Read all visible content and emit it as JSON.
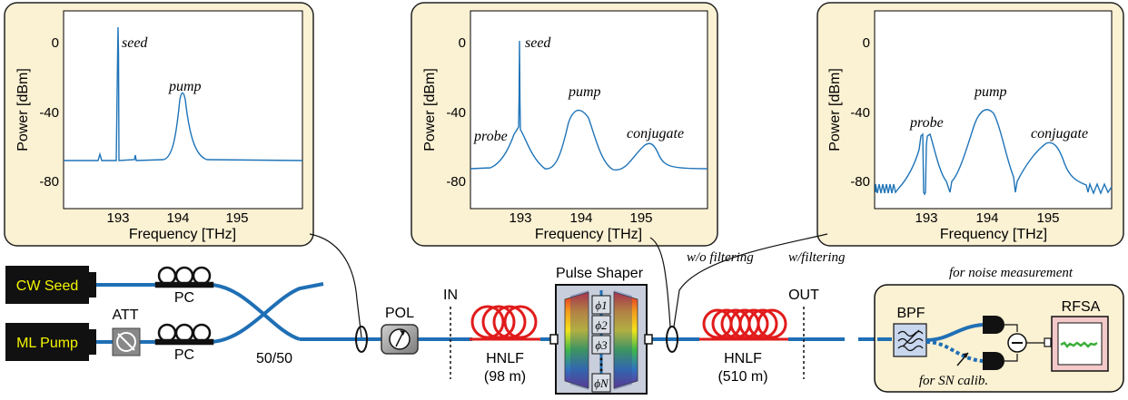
{
  "colors": {
    "panel_bg": "#fbf1d3",
    "fiber": "#1f6fb5",
    "hnlf": "#e11b1b",
    "trace": "#1f74b8",
    "label_yellow": "#f5f500"
  },
  "panels": [
    {
      "id": "seed-pump",
      "ylabel": "Power [dBm]",
      "xlabel": "Frequency [THz]",
      "yticks": [
        "0",
        "-40",
        "-80"
      ],
      "xticks": [
        "193",
        "194",
        "195"
      ],
      "annotations": {
        "seed": "seed",
        "pump": "pump"
      }
    },
    {
      "id": "wo-filtering",
      "ylabel": "Power [dBm]",
      "xlabel": "Frequency [THz]",
      "yticks": [
        "0",
        "-40",
        "-80"
      ],
      "xticks": [
        "193",
        "194",
        "195"
      ],
      "annotations": {
        "seed": "seed",
        "probe": "probe",
        "pump": "pump",
        "conjugate": "conjugate"
      }
    },
    {
      "id": "w-filtering",
      "ylabel": "Power [dBm]",
      "xlabel": "Frequency [THz]",
      "yticks": [
        "0",
        "-40",
        "-80"
      ],
      "xticks": [
        "193",
        "194",
        "195"
      ],
      "annotations": {
        "probe": "probe",
        "pump": "pump",
        "conjugate": "conjugate"
      }
    }
  ],
  "setup": {
    "cw_seed": "CW Seed",
    "ml_pump": "ML Pump",
    "att": "ATT",
    "pc1": "PC",
    "pc2": "PC",
    "coupler": "50/50",
    "pol": "POL",
    "in": "IN",
    "out": "OUT",
    "hnlf1": "HNLF",
    "hnlf1_len": "(98 m)",
    "hnlf2": "HNLF",
    "hnlf2_len": "(510 m)",
    "pulse_shaper": "Pulse Shaper",
    "phases": [
      "ϕ1",
      "ϕ2",
      "ϕ3",
      "ϕN"
    ],
    "tap_wo": "w/o filtering",
    "tap_w": "w/filtering",
    "noise_title": "for noise measurement",
    "bpf": "BPF",
    "rfsa": "RFSA",
    "sn_calib": "for SN calib."
  }
}
